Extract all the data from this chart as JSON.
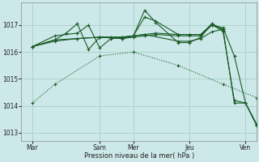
{
  "background_color": "#cce8e8",
  "grid_color": "#a8d0c8",
  "line_color": "#1a5c28",
  "xlabel": "Pression niveau de la mer( hPa )",
  "ylim": [
    1012.7,
    1017.85
  ],
  "yticks": [
    1013,
    1014,
    1015,
    1016,
    1017
  ],
  "xlim": [
    0,
    21
  ],
  "x_ticks_labels": [
    "Mar",
    "Sam",
    "Mer",
    "Jeu",
    "Ven"
  ],
  "x_ticks_pos": [
    1,
    7,
    10,
    15,
    20
  ],
  "series": [
    {
      "x": [
        1,
        3,
        5,
        7,
        9,
        10,
        11,
        12,
        14,
        15,
        16,
        17,
        18,
        19,
        20,
        21
      ],
      "y": [
        1016.2,
        1016.45,
        1016.5,
        1016.55,
        1016.5,
        1016.6,
        1016.65,
        1016.7,
        1016.65,
        1016.65,
        1016.65,
        1017.0,
        1016.9,
        1015.85,
        1014.1,
        1013.3
      ],
      "ls": "-"
    },
    {
      "x": [
        1,
        3,
        5,
        7,
        9,
        10,
        11,
        12,
        14,
        15,
        16,
        17,
        18
      ],
      "y": [
        1016.2,
        1016.4,
        1016.5,
        1016.55,
        1016.5,
        1016.55,
        1016.6,
        1016.65,
        1016.6,
        1016.6,
        1016.6,
        1017.0,
        1016.8
      ],
      "ls": "-"
    },
    {
      "x": [
        1,
        3,
        5,
        6,
        7,
        8,
        9,
        10,
        11,
        12,
        14,
        15,
        16,
        17,
        18,
        19,
        20,
        21
      ],
      "y": [
        1016.2,
        1016.6,
        1016.7,
        1017.0,
        1016.15,
        1016.5,
        1016.55,
        1016.6,
        1017.3,
        1017.15,
        1016.65,
        1016.65,
        1016.65,
        1017.05,
        1016.75,
        1014.2,
        1014.1,
        1013.3
      ],
      "ls": "-"
    },
    {
      "x": [
        1,
        3,
        4,
        5,
        6,
        7,
        8,
        9,
        10,
        11,
        14,
        15,
        16,
        17,
        18
      ],
      "y": [
        1016.2,
        1016.45,
        1016.7,
        1017.05,
        1016.1,
        1016.55,
        1016.55,
        1016.55,
        1016.6,
        1016.65,
        1016.4,
        1016.4,
        1016.5,
        1016.75,
        1016.85
      ],
      "ls": "-"
    },
    {
      "x": [
        1,
        3,
        7,
        10,
        14,
        18,
        21
      ],
      "y": [
        1014.1,
        1014.8,
        1015.85,
        1016.0,
        1015.5,
        1014.8,
        1014.3
      ],
      "ls": ":"
    },
    {
      "x": [
        7,
        9,
        10,
        11,
        12,
        14,
        15,
        16,
        17,
        18,
        19,
        20,
        21
      ],
      "y": [
        1016.55,
        1016.55,
        1016.6,
        1017.55,
        1017.1,
        1016.35,
        1016.35,
        1016.55,
        1017.05,
        1016.85,
        1014.1,
        1014.1,
        1013.25
      ],
      "ls": "-"
    }
  ]
}
